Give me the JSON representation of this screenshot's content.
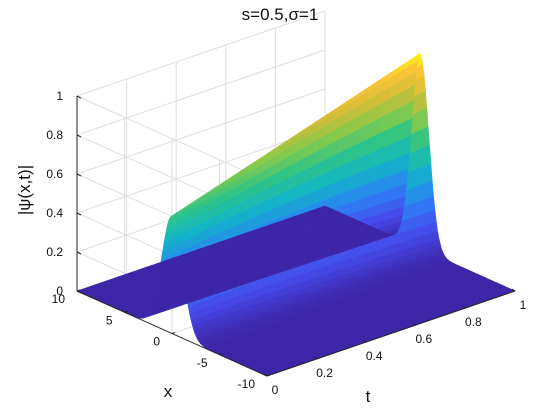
{
  "chart_data": {
    "type": "surface3d",
    "title": "s=0.5,σ=1",
    "xlabel": "t",
    "ylabel": "x",
    "zlabel": "|ψ(x,t)|",
    "t_range": [
      0,
      1
    ],
    "x_range": [
      -10,
      10
    ],
    "z_range": [
      0,
      1
    ],
    "t_ticks": [
      "0",
      "0.2",
      "0.4",
      "0.6",
      "0.8",
      "1"
    ],
    "x_ticks": [
      "10",
      "5",
      "0",
      "-5",
      "-10"
    ],
    "z_ticks": [
      "0",
      "0.2",
      "0.4",
      "0.6",
      "0.8",
      "1"
    ],
    "grid": true,
    "colormap": "parula",
    "peak_profile": {
      "t": [
        0,
        0.2,
        0.4,
        0.6,
        0.8,
        1
      ],
      "amplitude": [
        0.6,
        0.68,
        0.76,
        0.84,
        0.92,
        1.0
      ],
      "center_x": [
        0,
        0,
        0,
        0,
        0,
        0
      ]
    },
    "colors": {
      "low": "#3e26a8",
      "mid": "#12b5c6",
      "high": "#f9fb0e"
    }
  }
}
